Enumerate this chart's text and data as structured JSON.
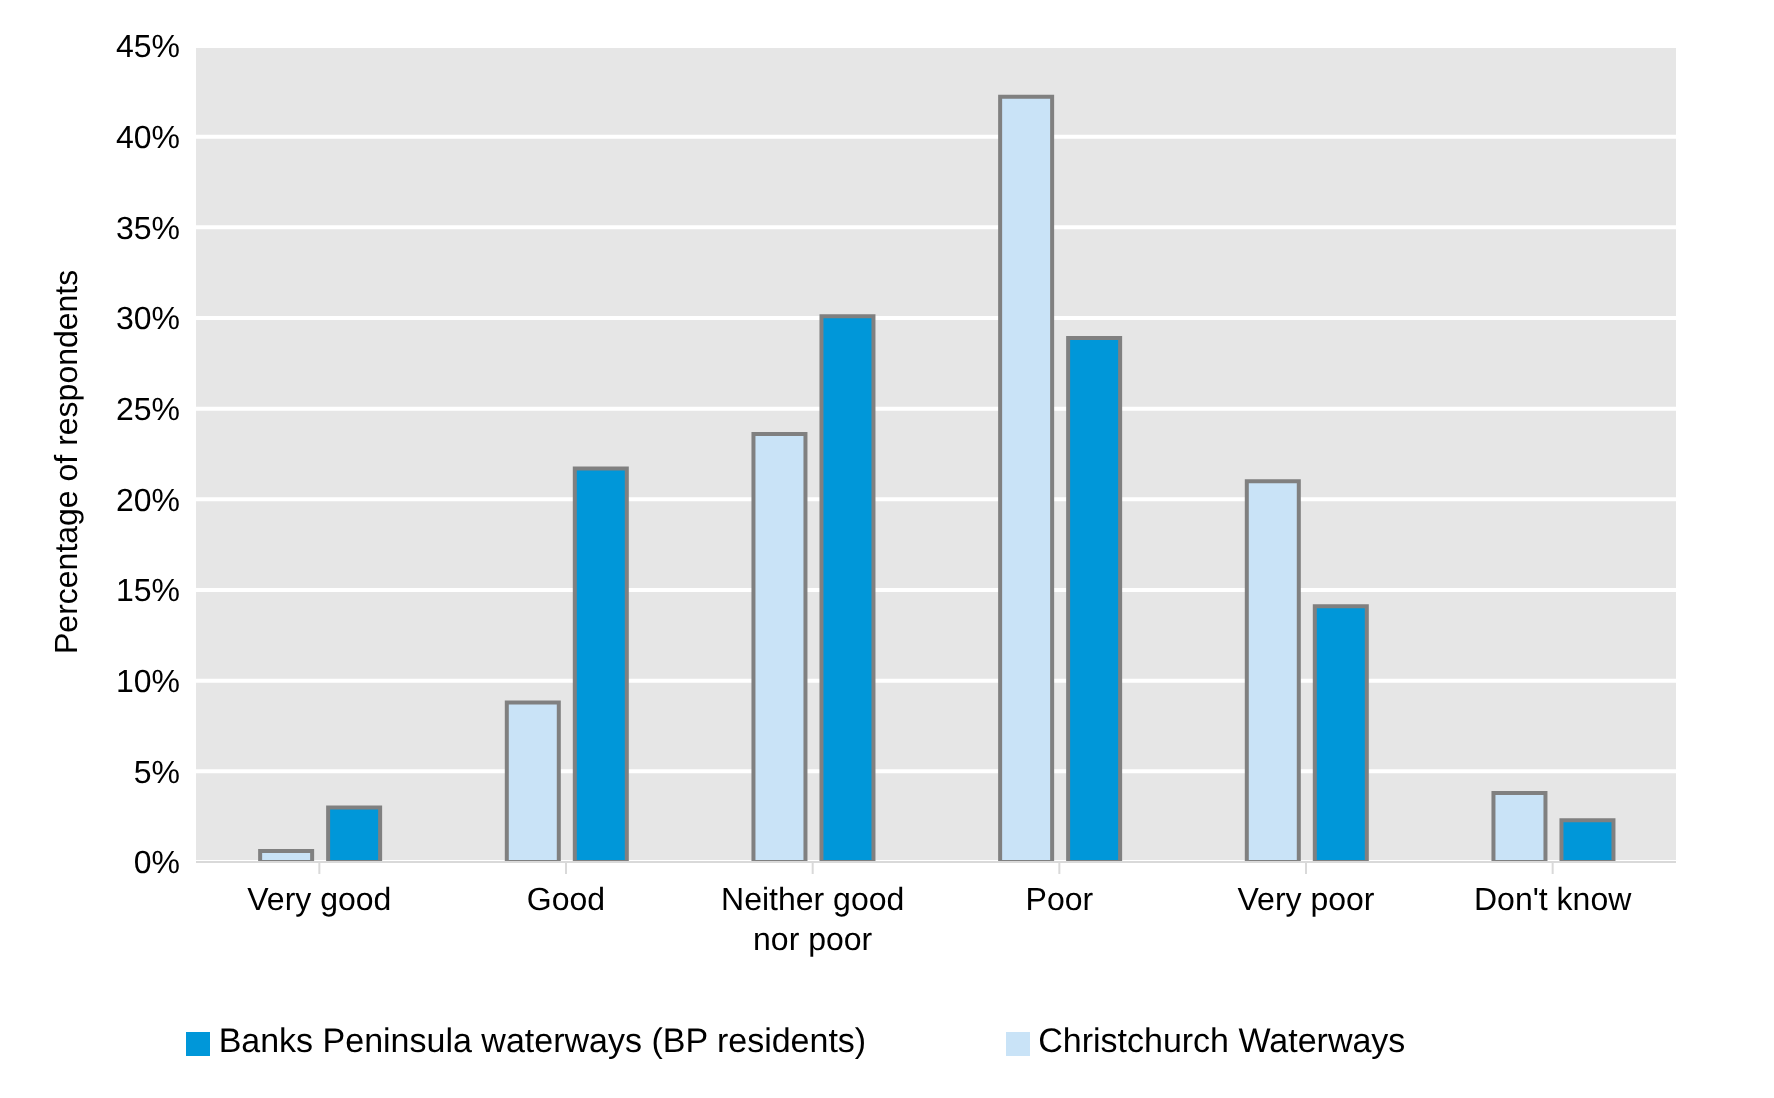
{
  "chart_data": {
    "type": "bar",
    "ylabel": "Percentage of respondents",
    "categories": [
      "Very good",
      "Good",
      "Neither good nor poor",
      "Poor",
      "Very poor",
      "Don't know"
    ],
    "series": [
      {
        "name": "Christchurch Waterways",
        "color": "#c9e3f7",
        "values": [
          0.6,
          8.8,
          23.6,
          42.2,
          21.0,
          3.8
        ]
      },
      {
        "name": "Banks Peninsula waterways (BP residents)",
        "color": "#0097d9",
        "values": [
          3.0,
          21.7,
          30.1,
          28.9,
          14.1,
          2.3
        ]
      }
    ],
    "ylim": [
      0,
      45
    ],
    "yticks": [
      {
        "value": 0,
        "label": "0%"
      },
      {
        "value": 5,
        "label": "5%"
      },
      {
        "value": 10,
        "label": "10%"
      },
      {
        "value": 15,
        "label": "15%"
      },
      {
        "value": 20,
        "label": "20%"
      },
      {
        "value": 25,
        "label": "25%"
      },
      {
        "value": 30,
        "label": "30%"
      },
      {
        "value": 35,
        "label": "35%"
      },
      {
        "value": 40,
        "label": "40%"
      },
      {
        "value": 45,
        "label": "45%"
      }
    ],
    "grid": "y",
    "legend": "bottom"
  }
}
